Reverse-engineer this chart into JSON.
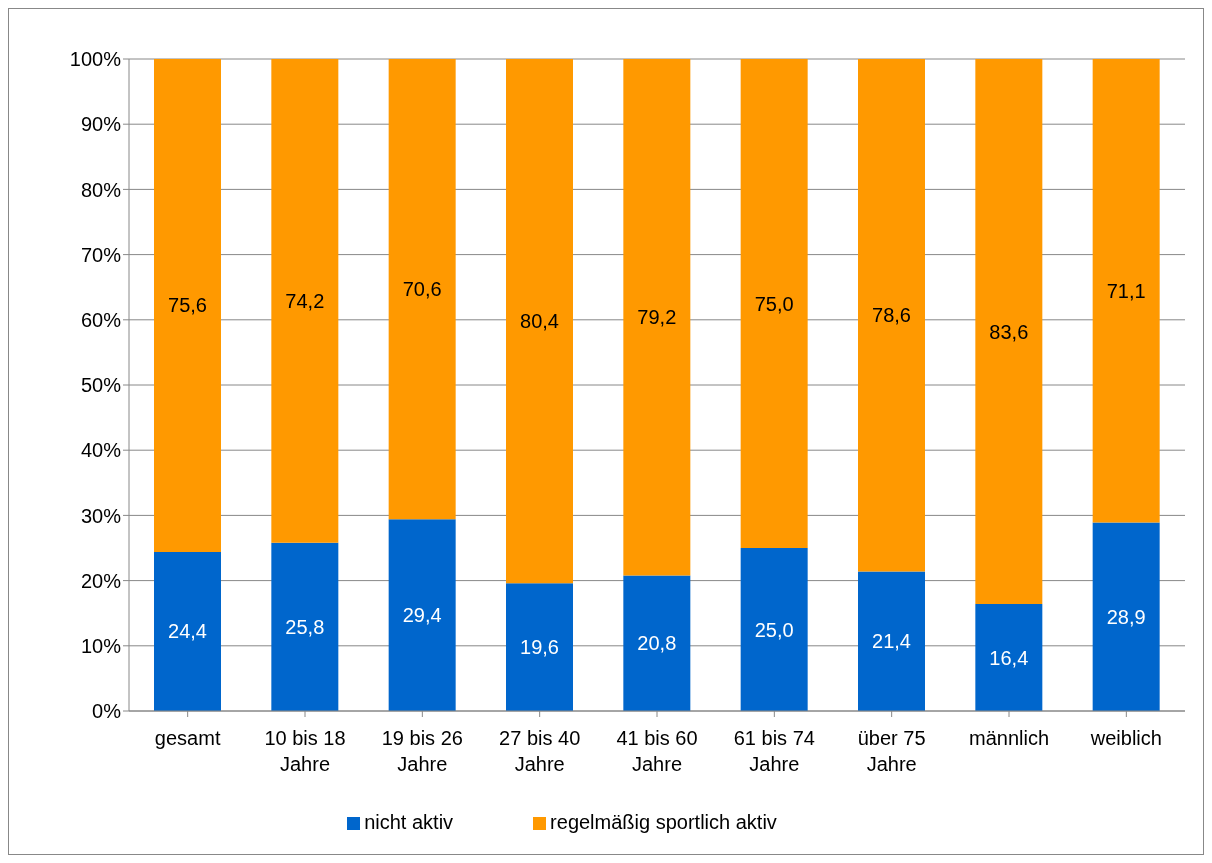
{
  "chart_data": {
    "type": "bar",
    "stacked": true,
    "categories": [
      "gesamt",
      "10 bis 18 Jahre",
      "19 bis 26 Jahre",
      "27 bis 40 Jahre",
      "41 bis 60 Jahre",
      "61 bis 74 Jahre",
      "über 75 Jahre",
      "männlich",
      "weiblich"
    ],
    "series": [
      {
        "name": "nicht aktiv",
        "color": "#0066cc",
        "values": [
          24.4,
          25.8,
          29.4,
          19.6,
          20.8,
          25.0,
          21.4,
          16.4,
          28.9
        ],
        "value_labels": [
          "24,4",
          "25,8",
          "29,4",
          "19,6",
          "20,8",
          "25,0",
          "21,4",
          "16,4",
          "28,9"
        ]
      },
      {
        "name": "regelmäßig sportlich aktiv",
        "color": "#ff9900",
        "values": [
          75.6,
          74.2,
          70.6,
          80.4,
          79.2,
          75.0,
          78.6,
          83.6,
          71.1
        ],
        "value_labels": [
          "75,6",
          "74,2",
          "70,6",
          "80,4",
          "79,2",
          "75,0",
          "78,6",
          "83,6",
          "71,1"
        ]
      }
    ],
    "ylim": [
      0,
      100
    ],
    "yticks": [
      {
        "value": 0,
        "label": "0%"
      },
      {
        "value": 10,
        "label": "10%"
      },
      {
        "value": 20,
        "label": "20%"
      },
      {
        "value": 30,
        "label": "30%"
      },
      {
        "value": 40,
        "label": "40%"
      },
      {
        "value": 50,
        "label": "50%"
      },
      {
        "value": 60,
        "label": "60%"
      },
      {
        "value": 70,
        "label": "70%"
      },
      {
        "value": 80,
        "label": "80%"
      },
      {
        "value": 90,
        "label": "90%"
      },
      {
        "value": 100,
        "label": "100%"
      }
    ],
    "grid": "y",
    "legend": "bottom"
  }
}
